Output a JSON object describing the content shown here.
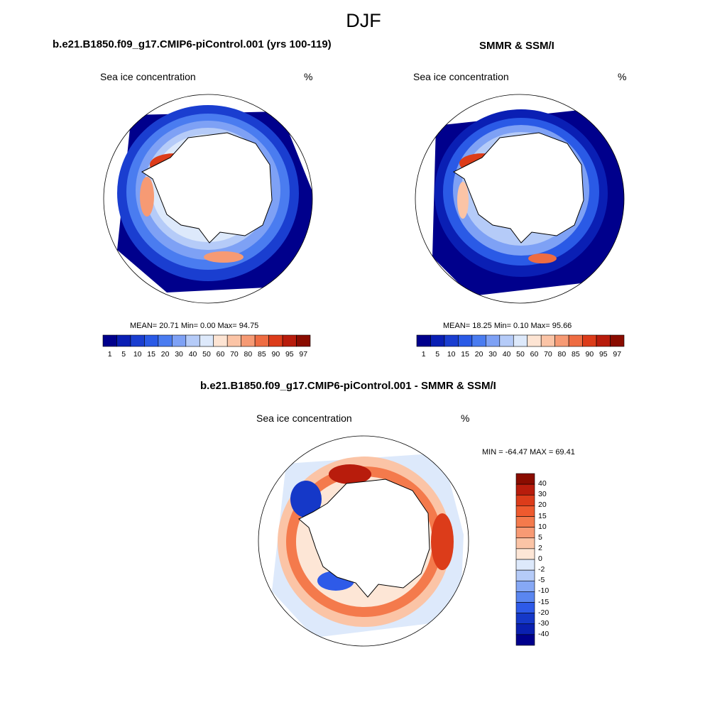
{
  "figure_title": "DJF",
  "panels": [
    {
      "title": "b.e21.B1850.f09_g17.CMIP6-piControl.001 (yrs 100-119)",
      "variable": "Sea ice concentration",
      "units": "%",
      "stats": "MEAN=  20.71  Min=   0.00  Max=  94.75"
    },
    {
      "title": "SMMR & SSM/I",
      "variable": "Sea ice concentration",
      "units": "%",
      "stats": "MEAN=  18.25  Min=   0.10  Max=  95.66"
    },
    {
      "title": "b.e21.B1850.f09_g17.CMIP6-piControl.001 - SMMR & SSM/I",
      "variable": "Sea ice concentration",
      "units": "%",
      "stats": "MIN = -64.47 MAX =  69.41"
    }
  ],
  "colorbars": {
    "concentration": {
      "labels": [
        "1",
        "5",
        "10",
        "15",
        "20",
        "30",
        "40",
        "50",
        "60",
        "70",
        "80",
        "85",
        "90",
        "95",
        "97"
      ],
      "colors": [
        "#00008c",
        "#0a1fb4",
        "#1a3ed0",
        "#2a5ae6",
        "#4a7cf0",
        "#7ea1f5",
        "#b5cbf8",
        "#dde9fb",
        "#fde4d3",
        "#fbc4a6",
        "#f69a74",
        "#ee6c42",
        "#dc3c1a",
        "#b81c0c",
        "#8a0c00"
      ]
    },
    "difference": {
      "labels": [
        "40",
        "30",
        "20",
        "15",
        "10",
        "5",
        "2",
        "0",
        "-2",
        "-5",
        "-10",
        "-15",
        "-20",
        "-30",
        "-40"
      ],
      "colors": [
        "#8a0c00",
        "#b81c0c",
        "#dc3c1a",
        "#ee5a2e",
        "#f47a4c",
        "#f89a74",
        "#fbc4a6",
        "#fde6d6",
        "#dde9fb",
        "#b5cbf8",
        "#86a8f5",
        "#5a86f0",
        "#2e5ae8",
        "#1538c8",
        "#0a20b0",
        "#00008c"
      ]
    }
  },
  "colors": {
    "land": "#ffffff",
    "coast": "#000000"
  }
}
